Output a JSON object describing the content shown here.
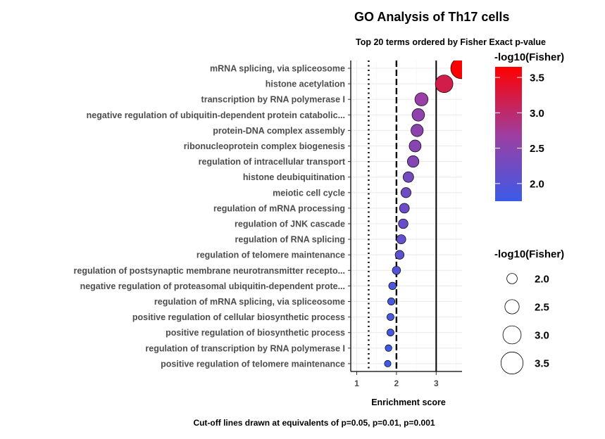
{
  "chart_data": {
    "type": "scatter",
    "title": "GO Analysis of Th17 cells",
    "subtitle": "Top 20 terms ordered by Fisher Exact p-value",
    "xlabel": "Enrichment score",
    "ylabel": "",
    "caption": "Cut-off lines drawn at equivalents of p=0.05, p=0.01, p=0.001",
    "xlim": [
      0.85,
      3.65
    ],
    "x_ticks": [
      "1",
      "2",
      "3"
    ],
    "x_tick_values": [
      1,
      2,
      3
    ],
    "grid": true,
    "cutoff_lines": [
      {
        "x": 1.301,
        "style": "dotted"
      },
      {
        "x": 2.0,
        "style": "dashed"
      },
      {
        "x": 3.0,
        "style": "solid"
      }
    ],
    "color_legend": {
      "title": "-log10(Fisher)",
      "ticks": [
        "2.0",
        "2.5",
        "3.0",
        "3.5"
      ],
      "tick_values": [
        2.0,
        2.5,
        3.0,
        3.5
      ],
      "range": [
        1.75,
        3.65
      ],
      "low_color": "#3b5be8",
      "mid_color": "#9b3fa3",
      "high_color": "#ff0000"
    },
    "size_legend": {
      "title": "-log10(Fisher)",
      "labels": [
        "2.0",
        "2.5",
        "3.0",
        "3.5"
      ],
      "values": [
        2.0,
        2.5,
        3.0,
        3.5
      ]
    },
    "terms": [
      "mRNA splicing, via spliceosome",
      "histone acetylation",
      "transcription by RNA polymerase I",
      "negative regulation of ubiquitin-dependent protein catabolic...",
      "protein-DNA complex assembly",
      "ribonucleoprotein complex biogenesis",
      "regulation of intracellular transport",
      "histone deubiquitination",
      "meiotic cell cycle",
      "regulation of mRNA processing",
      "regulation of JNK cascade",
      "regulation of RNA splicing",
      "regulation of telomere maintenance",
      "regulation of postsynaptic membrane neurotransmitter recepto...",
      "negative regulation of proteasomal ubiquitin-dependent prote...",
      "regulation of mRNA splicing, via spliceosome",
      "positive regulation of cellular biosynthetic process",
      "positive regulation of biosynthetic process",
      "regulation of transcription by RNA polymerase I",
      "positive regulation of telomere maintenance"
    ],
    "enrichment": [
      3.63,
      3.2,
      2.63,
      2.55,
      2.52,
      2.47,
      2.42,
      2.3,
      2.24,
      2.2,
      2.17,
      2.12,
      2.08,
      2.0,
      1.9,
      1.87,
      1.85,
      1.85,
      1.8,
      1.78
    ],
    "neg_log10_fisher": [
      3.63,
      3.2,
      2.63,
      2.55,
      2.52,
      2.47,
      2.42,
      2.3,
      2.24,
      2.2,
      2.17,
      2.12,
      2.08,
      2.0,
      1.9,
      1.87,
      1.85,
      1.85,
      1.8,
      1.78
    ]
  }
}
